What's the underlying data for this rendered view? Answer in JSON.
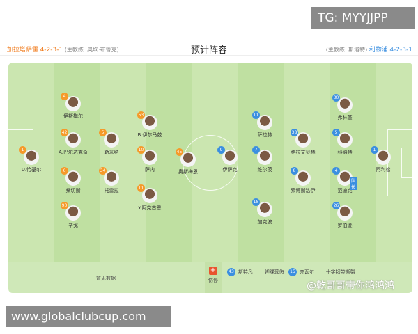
{
  "watermarks": {
    "tg": "TG: MYYJJPP",
    "site": "www.globalclubcup.com",
    "weibo": "@乾哥哥带你鸿鸿鸿"
  },
  "header": {
    "title": "预计阵容",
    "home": {
      "name": "加拉塔萨雷",
      "formation": "4-2-3-1",
      "coach": "(主教练: 奥坎·布鲁克)"
    },
    "away": {
      "name": "利物浦",
      "formation": "4-2-3-1",
      "coach": "(主教练: 斯洛特)"
    }
  },
  "home_players": [
    {
      "num": "1",
      "name": "U.恰基尔"
    },
    {
      "num": "4",
      "name": "伊斯梅尔"
    },
    {
      "num": "42",
      "name": "A.巴尔达克奇"
    },
    {
      "num": "6",
      "name": "桑切斯"
    },
    {
      "num": "90",
      "name": "辛戈"
    },
    {
      "num": "5",
      "name": "勒米纳"
    },
    {
      "num": "34",
      "name": "托雷拉"
    },
    {
      "num": "53",
      "name": "B.伊尔马兹"
    },
    {
      "num": "10",
      "name": "萨内"
    },
    {
      "num": "11",
      "name": "Y.阿克古恩"
    },
    {
      "num": "45",
      "name": "奥斯梅恩"
    }
  ],
  "away_players": [
    {
      "num": "9",
      "name": "伊萨克"
    },
    {
      "num": "11",
      "name": "萨拉赫"
    },
    {
      "num": "7",
      "name": "维尔茨"
    },
    {
      "num": "18",
      "name": "加克波"
    },
    {
      "num": "38",
      "name": "格拉文贝赫"
    },
    {
      "num": "8",
      "name": "索博斯洛伊"
    },
    {
      "num": "30",
      "name": "弗林蓬"
    },
    {
      "num": "5",
      "name": "科纳特"
    },
    {
      "num": "4",
      "name": "范迪克"
    },
    {
      "num": "26",
      "name": "罗伯逊"
    },
    {
      "num": "1",
      "name": "阿利松"
    }
  ],
  "captain_label": "队长",
  "bottom": {
    "home_injuries": "暂无数据",
    "injury_label": "伤停",
    "away_injuries": [
      {
        "num": "43",
        "name": "斯特凡...",
        "reason": "脚踝受伤"
      },
      {
        "num": "15",
        "name": "齐瓦尔...",
        "reason": "十字韧带撕裂"
      }
    ]
  },
  "colors": {
    "home": "#f07b1c",
    "away": "#3b8fe0",
    "pitch": "#c5e3a8"
  }
}
